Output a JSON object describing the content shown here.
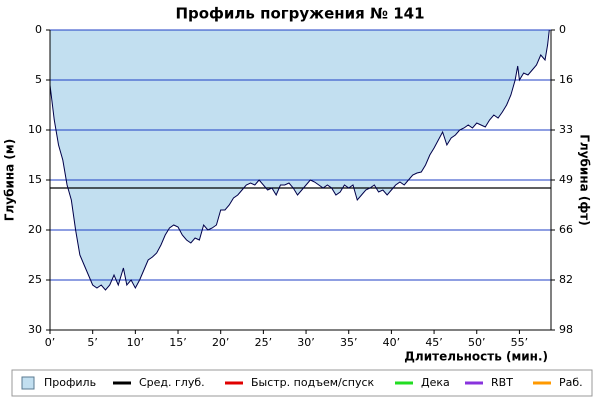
{
  "chart_data": {
    "type": "area",
    "title": "Профиль погружения № 141",
    "y_label": "Глубина (м)",
    "y2_label": "Глубина (фт)",
    "x_label": "Длительность (мин.)",
    "xlim": [
      0,
      58.7
    ],
    "ylim": [
      30,
      0
    ],
    "y2lim": [
      98.4,
      0
    ],
    "xticks": [
      {
        "value": 0,
        "label": "0’"
      },
      {
        "value": 5,
        "label": "5’"
      },
      {
        "value": 10,
        "label": "10’"
      },
      {
        "value": 15,
        "label": "15’"
      },
      {
        "value": 20,
        "label": "20’"
      },
      {
        "value": 25,
        "label": "25’"
      },
      {
        "value": 30,
        "label": "30’"
      },
      {
        "value": 35,
        "label": "35’"
      },
      {
        "value": 40,
        "label": "40’"
      },
      {
        "value": 45,
        "label": "45’"
      },
      {
        "value": 50,
        "label": "50’"
      },
      {
        "value": 55,
        "label": "55’"
      }
    ],
    "yticks": [
      0,
      5,
      10,
      15,
      20,
      25,
      30
    ],
    "y2ticks": [
      0,
      {
        "value": 16.4,
        "label": "16"
      },
      {
        "value": 32.8,
        "label": "33"
      },
      {
        "value": 49.2,
        "label": "49"
      },
      {
        "value": 65.6,
        "label": "66"
      },
      {
        "value": 82,
        "label": "82"
      },
      {
        "value": 98.4,
        "label": "98"
      }
    ],
    "grid": true,
    "grid_color": "#1f3fc4",
    "series": [
      {
        "name": "Профиль",
        "color": "#c2dff0",
        "line_color": "#00004a",
        "x": [
          0,
          0.5,
          1,
          1.5,
          2,
          2.5,
          3,
          3.5,
          4,
          4.5,
          5,
          5.5,
          6,
          6.5,
          7,
          7.5,
          8,
          8.6,
          9,
          9.5,
          10,
          10.5,
          11,
          11.5,
          12,
          12.5,
          13,
          13.5,
          14,
          14.5,
          15,
          15.5,
          16,
          16.5,
          17,
          17.5,
          18,
          18.5,
          19,
          19.5,
          20,
          20.5,
          21,
          21.5,
          22,
          22.5,
          23,
          23.5,
          24,
          24.5,
          25,
          25.5,
          26,
          26.5,
          27,
          27.5,
          28,
          28.5,
          29,
          29.5,
          30,
          30.5,
          31,
          31.5,
          32,
          32.5,
          33,
          33.5,
          34,
          34.5,
          35,
          35.5,
          36,
          36.5,
          37,
          37.5,
          38,
          38.5,
          39,
          39.5,
          40,
          40.5,
          41,
          41.5,
          42,
          42.5,
          43,
          43.5,
          44,
          44.5,
          45,
          45.5,
          46,
          46.5,
          47,
          47.5,
          48,
          48.5,
          49,
          49.5,
          50,
          50.5,
          51,
          51.5,
          52,
          52.5,
          53,
          53.5,
          54,
          54.5,
          54.8,
          55,
          55.5,
          56,
          56.5,
          57,
          57.5,
          58,
          58.3,
          58.5
        ],
        "values": [
          5.5,
          9,
          11.5,
          13,
          15.5,
          17,
          20,
          22.5,
          23.5,
          24.5,
          25.5,
          25.8,
          25.5,
          26,
          25.5,
          24.5,
          25.5,
          23.8,
          25.5,
          25,
          25.8,
          25,
          24,
          23,
          22.7,
          22.3,
          21.5,
          20.5,
          19.8,
          19.5,
          19.7,
          20.5,
          21,
          21.3,
          20.8,
          21,
          19.5,
          20,
          19.8,
          19.5,
          18,
          18,
          17.5,
          16.8,
          16.5,
          16,
          15.5,
          15.3,
          15.5,
          15,
          15.5,
          16,
          15.8,
          16.5,
          15.5,
          15.5,
          15.3,
          15.8,
          16.5,
          16,
          15.5,
          15,
          15.2,
          15.5,
          15.8,
          15.5,
          15.8,
          16.5,
          16.2,
          15.5,
          15.8,
          15.5,
          17,
          16.5,
          16,
          15.8,
          15.5,
          16.2,
          16,
          16.5,
          16,
          15.5,
          15.2,
          15.5,
          15,
          14.5,
          14.3,
          14.2,
          13.5,
          12.5,
          11.8,
          11,
          10.2,
          11.5,
          10.8,
          10.5,
          10,
          9.8,
          9.5,
          9.8,
          9.3,
          9.5,
          9.7,
          9,
          8.5,
          8.8,
          8.2,
          7.5,
          6.5,
          5,
          3.6,
          5,
          4.3,
          4.5,
          4,
          3.5,
          2.5,
          3,
          1.5,
          0
        ]
      }
    ],
    "average_depth": 15.8,
    "legend": [
      {
        "name": "Профиль",
        "color": "#c2dff0"
      },
      {
        "name": "Сред. глуб.",
        "color": "#000000"
      },
      {
        "name": "Быстр. подъем/спуск",
        "color": "#e00000"
      },
      {
        "name": "Дека",
        "color": "#22dd22"
      },
      {
        "name": "RBT",
        "color": "#8833dd"
      },
      {
        "name": "Раб.",
        "color": "#ff9900"
      }
    ]
  }
}
